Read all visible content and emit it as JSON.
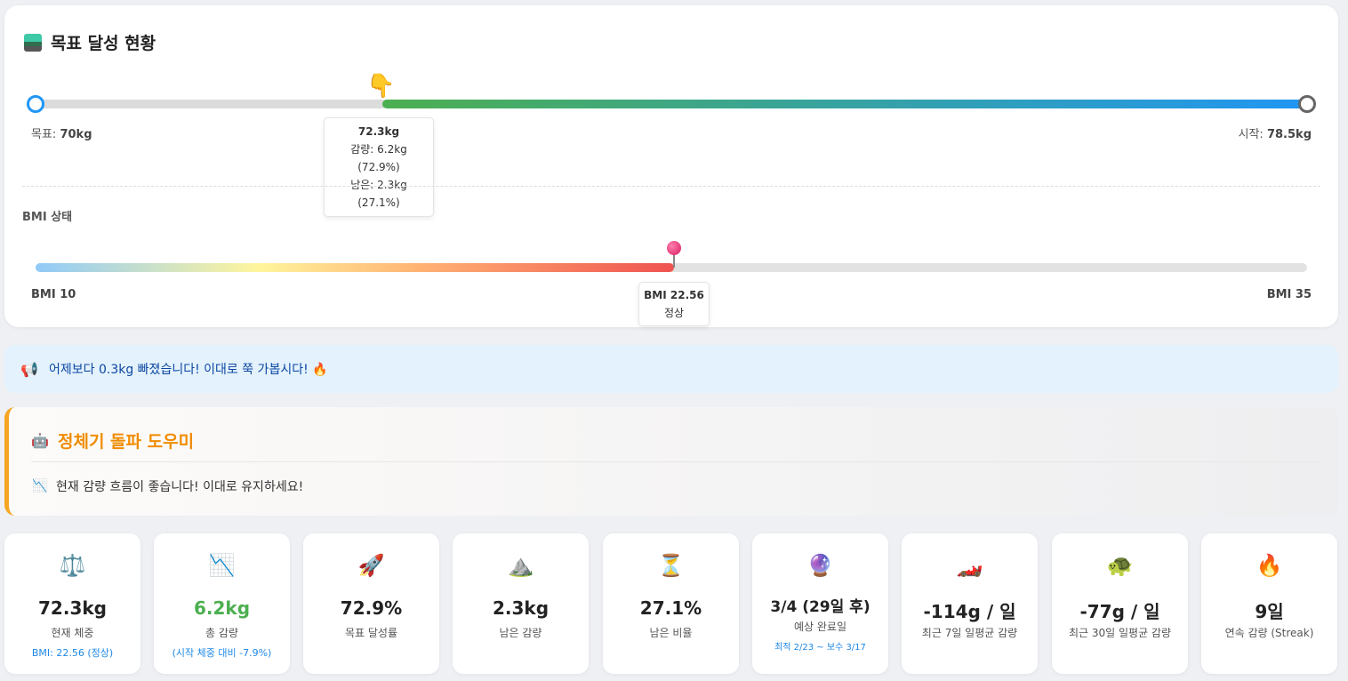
{
  "goal": {
    "title": "목표 달성 현황",
    "goal_label": "목표:",
    "goal_value": "70kg",
    "start_label": "시작:",
    "start_value": "78.5kg",
    "progress_percent": 72.9,
    "tooltip": {
      "current": "72.3kg",
      "lost": "감량: 6.2kg (72.9%)",
      "remaining": "남은: 2.3kg (27.1%)"
    }
  },
  "bmi": {
    "title": "BMI 상태",
    "min_label": "BMI 10",
    "max_label": "BMI 35",
    "current_label": "BMI 22.56",
    "status": "정상",
    "value": 22.56
  },
  "notice": {
    "text": "어제보다 0.3kg 빠졌습니다! 이대로 쭉 가봅시다!"
  },
  "helper": {
    "title": "정체기 돌파 도우미",
    "message": "현재 감량 흐름이 좋습니다! 이대로 유지하세요!"
  },
  "stats": [
    {
      "icon": "⚖️",
      "value": "72.3kg",
      "label": "현재 체중",
      "sub": "BMI: 22.56 (정상)"
    },
    {
      "icon": "📉",
      "value": "6.2kg",
      "label": "총 감량",
      "sub": "(시작 체중 대비 -7.9%)"
    },
    {
      "icon": "🚀",
      "value": "72.9%",
      "label": "목표 달성률",
      "sub": ""
    },
    {
      "icon": "⛰️",
      "value": "2.3kg",
      "label": "남은 감량",
      "sub": ""
    },
    {
      "icon": "⏳",
      "value": "27.1%",
      "label": "남은 비율",
      "sub": ""
    },
    {
      "icon": "🔮",
      "value": "3/4 (29일 후)",
      "label": "예상 완료일",
      "sub": "최적 2/23 ~ 보수 3/17"
    },
    {
      "icon": "🏎️",
      "value": "-114g / 일",
      "label": "최근 7일 일평균 감량",
      "sub": ""
    },
    {
      "icon": "🐢",
      "value": "-77g / 일",
      "label": "최근 30일 일평균 감량",
      "sub": ""
    },
    {
      "icon": "🔥",
      "value": "9일",
      "label": "연속 감량 (Streak)",
      "sub": ""
    }
  ]
}
